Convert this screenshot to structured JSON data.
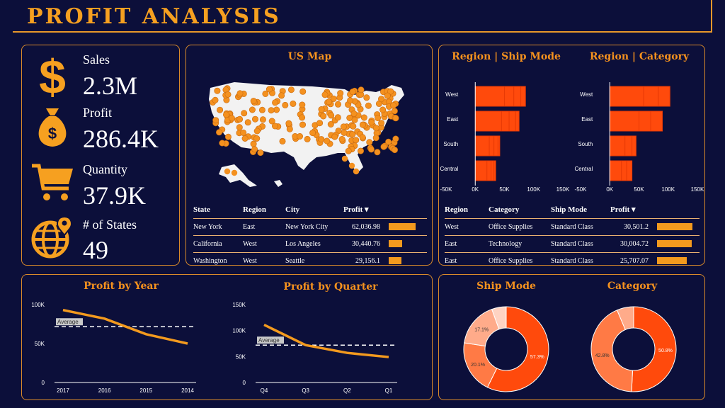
{
  "header": {
    "title": "PROFIT ANALYSIS"
  },
  "kpis": [
    {
      "label": "Sales",
      "value": "2.3M",
      "icon": "dollar-icon"
    },
    {
      "label": "Profit",
      "value": "286.4K",
      "icon": "money-bag-icon"
    },
    {
      "label": "Quantity",
      "value": "37.9K",
      "icon": "cart-icon"
    },
    {
      "label": "# of States",
      "value": "49",
      "icon": "globe-location-icon"
    }
  ],
  "map": {
    "title": "US Map",
    "columns": [
      "State",
      "Region",
      "City",
      "Profit"
    ],
    "sort_indicator": "▾",
    "rows": [
      {
        "state": "New York",
        "region": "East",
        "city": "New York City",
        "profit": "62,036.98",
        "value": 62036.98
      },
      {
        "state": "California",
        "region": "West",
        "city": "Los Angeles",
        "profit": "30,440.76",
        "value": 30440.76
      },
      {
        "state": "Washington",
        "region": "West",
        "city": "Seattle",
        "profit": "29,156.1",
        "value": 29156.1
      }
    ]
  },
  "region_panel": {
    "ship_title": "Region | Ship Mode",
    "cat_title": "Region | Category",
    "columns": [
      "Region",
      "Category",
      "Ship Mode",
      "Profit"
    ],
    "sort_indicator": "▾",
    "rows": [
      {
        "region": "West",
        "category": "Office Supplies",
        "ship_mode": "Standard Class",
        "profit": "30,501.2",
        "value": 30501.2
      },
      {
        "region": "East",
        "category": "Technology",
        "ship_mode": "Standard Class",
        "profit": "30,004.72",
        "value": 30004.72
      },
      {
        "region": "East",
        "category": "Office Supplies",
        "ship_mode": "Standard Class",
        "profit": "25,707.07",
        "value": 25707.07
      }
    ]
  },
  "donuts": {
    "ship_title": "Ship Mode",
    "cat_title": "Category"
  },
  "trend": {
    "year_title": "Profit by Year",
    "quarter_title": "Profit by Quarter",
    "average_label": "Average"
  },
  "colors": {
    "accent": "#f6921e",
    "bar": "#ff4a0c",
    "bg": "#0c0f3a",
    "donut": [
      "#ff4a0c",
      "#ff7a45",
      "#ffab8a",
      "#ffd3c2"
    ]
  },
  "chart_data": [
    {
      "type": "bar",
      "id": "region-ship",
      "categories": [
        "West",
        "East",
        "South",
        "Central"
      ],
      "series": [
        {
          "values": [
            50000,
            45000,
            24000,
            20000
          ]
        },
        {
          "values": [
            16000,
            13000,
            8000,
            7000
          ]
        },
        {
          "values": [
            12000,
            11000,
            7000,
            5000
          ]
        },
        {
          "values": [
            8000,
            6000,
            3000,
            3000
          ]
        }
      ],
      "xticks": [
        "-50K",
        "0K",
        "50K",
        "100K",
        "150K"
      ],
      "xlim": [
        -50000,
        150000
      ]
    },
    {
      "type": "bar",
      "id": "region-category",
      "categories": [
        "West",
        "East",
        "South",
        "Central"
      ],
      "series": [
        {
          "values": [
            58000,
            50000,
            26000,
            20000
          ]
        },
        {
          "values": [
            25000,
            20000,
            12000,
            9000
          ]
        },
        {
          "values": [
            20000,
            20000,
            7000,
            9000
          ]
        }
      ],
      "xticks": [
        "-50K",
        "0K",
        "50K",
        "100K",
        "150K"
      ],
      "xlim": [
        -50000,
        150000
      ]
    },
    {
      "type": "line",
      "id": "profit-year",
      "x": [
        "2017",
        "2016",
        "2015",
        "2014"
      ],
      "values": [
        93000,
        82000,
        62000,
        50000
      ],
      "average": 71600,
      "yticks": [
        "0",
        "50K",
        "100K"
      ],
      "ylim": [
        0,
        100000
      ]
    },
    {
      "type": "line",
      "id": "profit-quarter",
      "x": [
        "Q4",
        "Q3",
        "Q2",
        "Q1"
      ],
      "values": [
        111000,
        72000,
        57000,
        49000
      ],
      "average": 72000,
      "yticks": [
        "0",
        "50K",
        "100K",
        "150K"
      ],
      "ylim": [
        0,
        150000
      ]
    },
    {
      "type": "pie",
      "id": "ship-mode-donut",
      "values": [
        57.3,
        20.1,
        17.1,
        5.5
      ],
      "labels": [
        "57.3%",
        "20.1%",
        "17.1%",
        ""
      ]
    },
    {
      "type": "pie",
      "id": "category-donut",
      "values": [
        50.8,
        42.8,
        6.4
      ],
      "labels": [
        "50.8%",
        "42.8%",
        ""
      ]
    }
  ]
}
